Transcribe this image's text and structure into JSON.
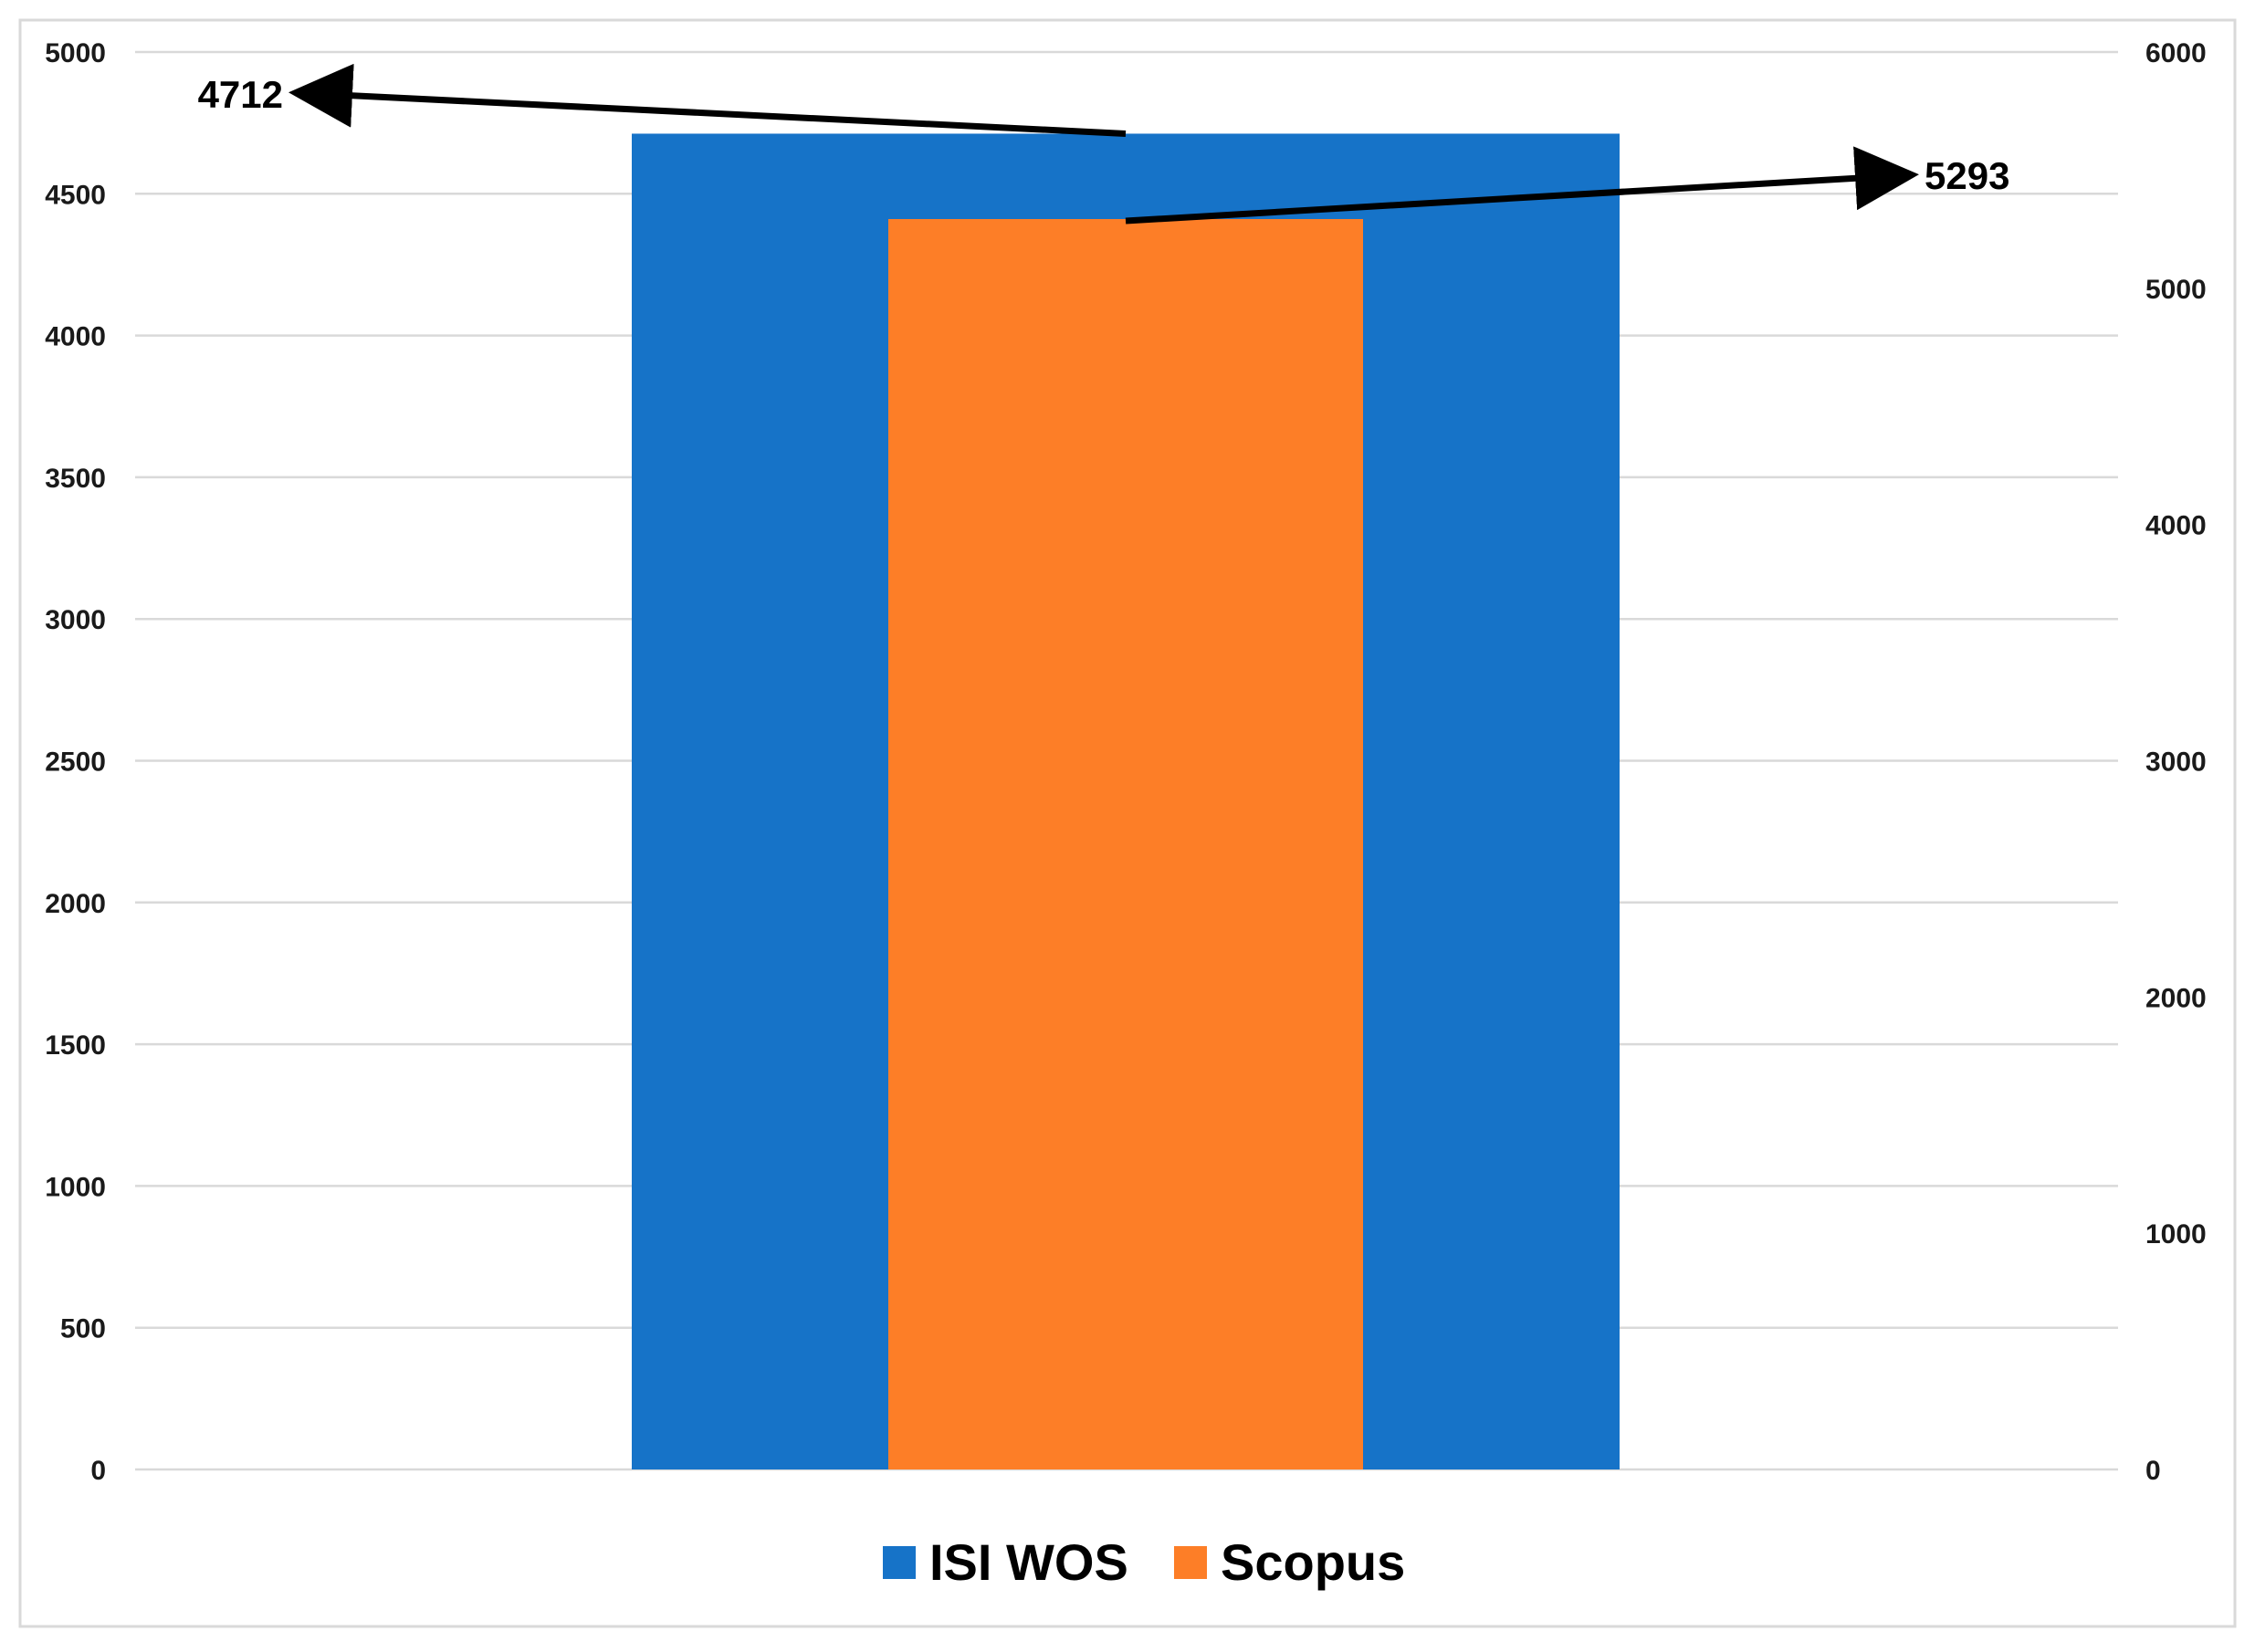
{
  "chart_data": {
    "type": "bar",
    "title": "",
    "xlabel": "",
    "categories": [
      ""
    ],
    "series": [
      {
        "name": "ISI WOS",
        "values": [
          4712
        ],
        "axis": "left",
        "color": "#1673c8"
      },
      {
        "name": "Scopus",
        "values": [
          5293
        ],
        "axis": "right",
        "color": "#fd7e27"
      }
    ],
    "y_left": {
      "label": "",
      "lim": [
        0,
        5000
      ],
      "ticks": [
        0,
        500,
        1000,
        1500,
        2000,
        2500,
        3000,
        3500,
        4000,
        4500,
        5000
      ]
    },
    "y_right": {
      "label": "",
      "lim": [
        0,
        6000
      ],
      "ticks": [
        0,
        1000,
        2000,
        3000,
        4000,
        5000,
        6000
      ]
    },
    "data_labels": [
      "4712",
      "5293"
    ],
    "grid": true,
    "legend": {
      "position": "bottom"
    }
  }
}
